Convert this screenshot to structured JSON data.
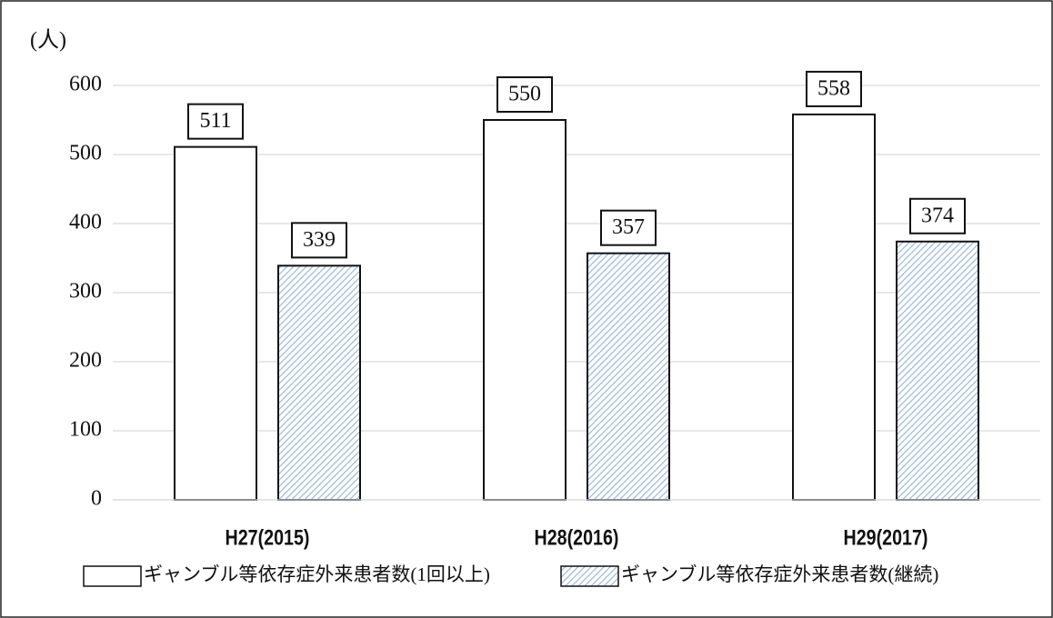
{
  "chart_data": {
    "type": "bar",
    "y_axis_label": "(人)",
    "categories": [
      "H27(2015)",
      "H28(2016)",
      "H29(2017)"
    ],
    "series": [
      {
        "name": "ギャンブル等依存症外来患者数(1回以上)",
        "color": "#ffffff",
        "values": [
          511,
          550,
          558
        ]
      },
      {
        "name": "ギャンブル等依存症外来患者数(継続)",
        "color": "#9bb7d9",
        "hatch": true,
        "values": [
          339,
          357,
          374
        ]
      }
    ],
    "ylim": [
      0,
      600
    ],
    "yticks": [
      0,
      100,
      200,
      300,
      400,
      500,
      600
    ],
    "grid": true,
    "legend": "bottom"
  }
}
